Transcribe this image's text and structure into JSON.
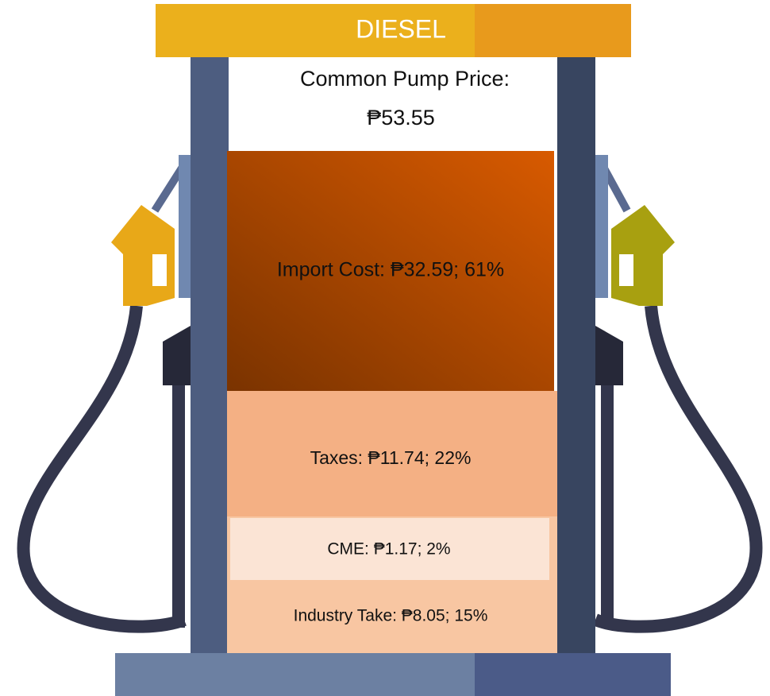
{
  "header": {
    "title": "DIESEL"
  },
  "price": {
    "label": "Common Pump Price:",
    "value": "₱53.55"
  },
  "segments": [
    {
      "label": "Import Cost: ₱32.59; 61%"
    },
    {
      "label": "Taxes: ₱11.74; 22%"
    },
    {
      "label": "CME: ₱1.17; 2%"
    },
    {
      "label": "Industry Take: ₱8.05; 15%"
    }
  ]
}
